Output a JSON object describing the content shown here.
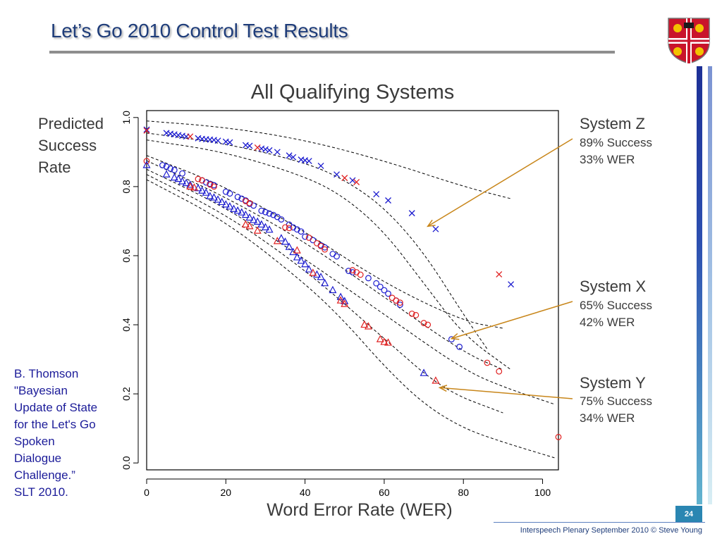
{
  "slide": {
    "title": "Let’s Go 2010 Control Test Results",
    "page_number": "24",
    "footer": "Interspeech Plenary September 2010 © Steve Young"
  },
  "reference": {
    "lines": [
      "B. Thomson",
      "\"Bayesian",
      "Update of State",
      "for the Let's Go",
      "Spoken",
      "Dialogue",
      "Challenge.”",
      "SLT 2010."
    ]
  },
  "colors": {
    "title": "#1f3d7a",
    "series_red": "#e02020",
    "series_blue": "#1c1ccf",
    "arrow": "#c8861a",
    "reference_text": "#1c1c99"
  },
  "chart_data": {
    "type": "scatter",
    "title": "All Qualifying Systems",
    "xlabel": "Word Error Rate (WER)",
    "ylabel_lines": [
      "Predicted",
      "Success",
      "Rate"
    ],
    "xlim": [
      0,
      104
    ],
    "ylim": [
      -0.02,
      1.02
    ],
    "xticks": [
      0,
      20,
      40,
      60,
      80,
      100
    ],
    "yticks": [
      0.0,
      0.2,
      0.4,
      0.6,
      0.8,
      1.0
    ],
    "xtick_labels": [
      "0",
      "20",
      "40",
      "60",
      "80",
      "100"
    ],
    "ytick_labels": [
      "0.0",
      "0.2",
      "0.4",
      "0.6",
      "0.8",
      "1.0"
    ],
    "grid": false,
    "series": [
      {
        "marker": "x",
        "color": "blue",
        "points": [
          [
            0,
            0.965
          ],
          [
            5,
            0.955
          ],
          [
            6,
            0.953
          ],
          [
            7,
            0.951
          ],
          [
            8,
            0.949
          ],
          [
            9,
            0.947
          ],
          [
            10,
            0.945
          ],
          [
            13,
            0.94
          ],
          [
            14,
            0.938
          ],
          [
            15,
            0.937
          ],
          [
            16,
            0.936
          ],
          [
            17,
            0.935
          ],
          [
            18,
            0.933
          ],
          [
            20,
            0.93
          ],
          [
            21,
            0.928
          ],
          [
            25,
            0.92
          ],
          [
            26,
            0.918
          ],
          [
            29,
            0.91
          ],
          [
            30,
            0.908
          ],
          [
            31,
            0.905
          ],
          [
            33,
            0.9
          ],
          [
            36,
            0.89
          ],
          [
            37,
            0.885
          ],
          [
            39,
            0.878
          ],
          [
            40,
            0.876
          ],
          [
            41,
            0.874
          ],
          [
            44,
            0.86
          ],
          [
            48,
            0.835
          ],
          [
            52,
            0.818
          ],
          [
            58,
            0.778
          ],
          [
            61,
            0.76
          ],
          [
            67,
            0.723
          ],
          [
            73,
            0.677
          ],
          [
            92,
            0.517
          ]
        ]
      },
      {
        "marker": "x",
        "color": "red",
        "points": [
          [
            0,
            0.962
          ],
          [
            11,
            0.945
          ],
          [
            28,
            0.913
          ],
          [
            50,
            0.825
          ],
          [
            53,
            0.813
          ],
          [
            89,
            0.546
          ]
        ]
      },
      {
        "marker": "o",
        "color": "blue",
        "points": [
          [
            4,
            0.862
          ],
          [
            5,
            0.858
          ],
          [
            6,
            0.852
          ],
          [
            7,
            0.848
          ],
          [
            9,
            0.838
          ],
          [
            14,
            0.818
          ],
          [
            15,
            0.812
          ],
          [
            16,
            0.808
          ],
          [
            17,
            0.804
          ],
          [
            20,
            0.785
          ],
          [
            21,
            0.78
          ],
          [
            23,
            0.77
          ],
          [
            24,
            0.765
          ],
          [
            25,
            0.76
          ],
          [
            26,
            0.75
          ],
          [
            27,
            0.745
          ],
          [
            29,
            0.73
          ],
          [
            30,
            0.726
          ],
          [
            31,
            0.722
          ],
          [
            32,
            0.718
          ],
          [
            33,
            0.712
          ],
          [
            34,
            0.705
          ],
          [
            36,
            0.69
          ],
          [
            37,
            0.682
          ],
          [
            38,
            0.676
          ],
          [
            39,
            0.67
          ],
          [
            40,
            0.655
          ],
          [
            42,
            0.645
          ],
          [
            44,
            0.63
          ],
          [
            45,
            0.624
          ],
          [
            47,
            0.605
          ],
          [
            48,
            0.598
          ],
          [
            51,
            0.556
          ],
          [
            52,
            0.552
          ],
          [
            56,
            0.535
          ],
          [
            58,
            0.52
          ],
          [
            59,
            0.51
          ],
          [
            60,
            0.5
          ],
          [
            61,
            0.49
          ],
          [
            63,
            0.47
          ],
          [
            64,
            0.458
          ],
          [
            77,
            0.358
          ],
          [
            79,
            0.336
          ]
        ]
      },
      {
        "marker": "o",
        "color": "red",
        "points": [
          [
            0,
            0.874
          ],
          [
            13,
            0.822
          ],
          [
            14,
            0.818
          ],
          [
            16,
            0.806
          ],
          [
            17,
            0.8
          ],
          [
            25,
            0.758
          ],
          [
            26,
            0.752
          ],
          [
            35,
            0.682
          ],
          [
            36,
            0.68
          ],
          [
            41,
            0.652
          ],
          [
            43,
            0.636
          ],
          [
            44,
            0.628
          ],
          [
            45,
            0.618
          ],
          [
            52,
            0.558
          ],
          [
            53,
            0.552
          ],
          [
            54,
            0.545
          ],
          [
            62,
            0.478
          ],
          [
            63,
            0.47
          ],
          [
            64,
            0.464
          ],
          [
            67,
            0.432
          ],
          [
            68,
            0.428
          ],
          [
            70,
            0.405
          ],
          [
            71,
            0.4
          ],
          [
            86,
            0.29
          ],
          [
            89,
            0.265
          ],
          [
            104,
            0.075
          ]
        ]
      },
      {
        "marker": "triangle",
        "color": "blue",
        "points": [
          [
            0,
            0.862
          ],
          [
            5,
            0.835
          ],
          [
            7,
            0.826
          ],
          [
            8,
            0.822
          ],
          [
            9,
            0.815
          ],
          [
            10,
            0.81
          ],
          [
            11,
            0.805
          ],
          [
            13,
            0.795
          ],
          [
            14,
            0.788
          ],
          [
            15,
            0.782
          ],
          [
            16,
            0.772
          ],
          [
            17,
            0.768
          ],
          [
            18,
            0.762
          ],
          [
            19,
            0.755
          ],
          [
            20,
            0.748
          ],
          [
            21,
            0.742
          ],
          [
            22,
            0.735
          ],
          [
            23,
            0.73
          ],
          [
            24,
            0.725
          ],
          [
            25,
            0.718
          ],
          [
            26,
            0.71
          ],
          [
            27,
            0.703
          ],
          [
            28,
            0.698
          ],
          [
            29,
            0.69
          ],
          [
            30,
            0.682
          ],
          [
            31,
            0.675
          ],
          [
            34,
            0.65
          ],
          [
            35,
            0.64
          ],
          [
            36,
            0.625
          ],
          [
            37,
            0.61
          ],
          [
            38,
            0.595
          ],
          [
            39,
            0.585
          ],
          [
            40,
            0.575
          ],
          [
            41,
            0.56
          ],
          [
            43,
            0.545
          ],
          [
            44,
            0.538
          ],
          [
            45,
            0.52
          ],
          [
            47,
            0.5
          ],
          [
            49,
            0.48
          ],
          [
            50,
            0.468
          ],
          [
            70,
            0.26
          ]
        ]
      },
      {
        "marker": "triangle",
        "color": "red",
        "points": [
          [
            11,
            0.8
          ],
          [
            12,
            0.797
          ],
          [
            25,
            0.69
          ],
          [
            26,
            0.685
          ],
          [
            28,
            0.672
          ],
          [
            33,
            0.642
          ],
          [
            38,
            0.615
          ],
          [
            42,
            0.55
          ],
          [
            49,
            0.47
          ],
          [
            50,
            0.46
          ],
          [
            55,
            0.4
          ],
          [
            56,
            0.395
          ],
          [
            59,
            0.358
          ],
          [
            60,
            0.35
          ],
          [
            61,
            0.348
          ],
          [
            73,
            0.238
          ]
        ]
      }
    ],
    "curves": [
      [
        [
          0,
          0.99
        ],
        [
          20,
          0.972
        ],
        [
          40,
          0.935
        ],
        [
          60,
          0.875
        ],
        [
          80,
          0.8
        ],
        [
          92,
          0.765
        ]
      ],
      [
        [
          0,
          0.955
        ],
        [
          20,
          0.925
        ],
        [
          40,
          0.87
        ],
        [
          50,
          0.82
        ],
        [
          60,
          0.74
        ],
        [
          70,
          0.61
        ],
        [
          80,
          0.43
        ],
        [
          86,
          0.33
        ]
      ],
      [
        [
          0,
          0.935
        ],
        [
          20,
          0.9
        ],
        [
          40,
          0.83
        ],
        [
          50,
          0.77
        ],
        [
          60,
          0.67
        ],
        [
          70,
          0.52
        ],
        [
          80,
          0.37
        ],
        [
          92,
          0.27
        ]
      ],
      [
        [
          0,
          0.89
        ],
        [
          20,
          0.8
        ],
        [
          40,
          0.67
        ],
        [
          60,
          0.52
        ],
        [
          80,
          0.41
        ],
        [
          90,
          0.39
        ]
      ],
      [
        [
          0,
          0.875
        ],
        [
          20,
          0.77
        ],
        [
          40,
          0.64
        ],
        [
          60,
          0.48
        ],
        [
          80,
          0.32
        ],
        [
          90,
          0.27
        ]
      ],
      [
        [
          0,
          0.85
        ],
        [
          20,
          0.74
        ],
        [
          40,
          0.59
        ],
        [
          60,
          0.43
        ],
        [
          80,
          0.27
        ],
        [
          90,
          0.22
        ],
        [
          103,
          0.17
        ]
      ],
      [
        [
          0,
          0.835
        ],
        [
          20,
          0.72
        ],
        [
          40,
          0.56
        ],
        [
          60,
          0.36
        ],
        [
          75,
          0.21
        ],
        [
          90,
          0.145
        ]
      ],
      [
        [
          0,
          0.82
        ],
        [
          20,
          0.7
        ],
        [
          40,
          0.52
        ],
        [
          50,
          0.41
        ],
        [
          60,
          0.28
        ],
        [
          70,
          0.17
        ],
        [
          80,
          0.1
        ],
        [
          90,
          0.06
        ],
        [
          103,
          0.015
        ]
      ]
    ],
    "annotations": [
      {
        "title": "System Z",
        "lines": [
          "89% Success",
          "33% WER"
        ],
        "target": [
          71,
          0.685
        ]
      },
      {
        "title": "System X",
        "lines": [
          "65% Success",
          "42% WER"
        ],
        "target": [
          77,
          0.36
        ]
      },
      {
        "title": "System Y",
        "lines": [
          "75% Success",
          "34% WER"
        ],
        "target": [
          74,
          0.218
        ]
      }
    ]
  }
}
